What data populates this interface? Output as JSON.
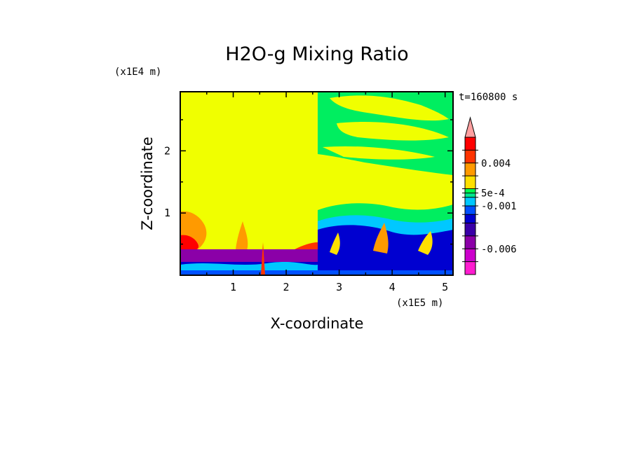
{
  "chart_data": {
    "type": "heatmap",
    "title": "H2O-g Mixing Ratio",
    "xlabel": "X-coordinate",
    "ylabel": "Z-coordinate",
    "x_scale_label": "(x1E5 m)",
    "y_scale_label": "(x1E4 m)",
    "time_label": "t=160800 s",
    "xlim": [
      0,
      5.15
    ],
    "ylim": [
      0,
      2.95
    ],
    "x_ticks": [
      "1",
      "2",
      "3",
      "4",
      "5"
    ],
    "y_ticks": [
      "1",
      "2"
    ],
    "colorbar": {
      "levels": [
        -0.009,
        -0.0075,
        -0.006,
        -0.0045,
        -0.003,
        -0.002,
        -0.001,
        0,
        0.0005,
        0.001,
        0.0025,
        0.004,
        0.0055,
        0.007
      ],
      "colors": [
        "#ff1cd0",
        "#cc00cc",
        "#8b00a8",
        "#3a00a8",
        "#0000d0",
        "#0050ff",
        "#00c8ff",
        "#00e88c",
        "#00ff50",
        "#ffe000",
        "#ff9a00",
        "#ff3300",
        "#ff0000",
        "#f06060",
        "#ffa0a0"
      ],
      "labels": [
        "0.004",
        "5e-4",
        "-0.001",
        "-0.006"
      ],
      "extend_max": true
    }
  }
}
